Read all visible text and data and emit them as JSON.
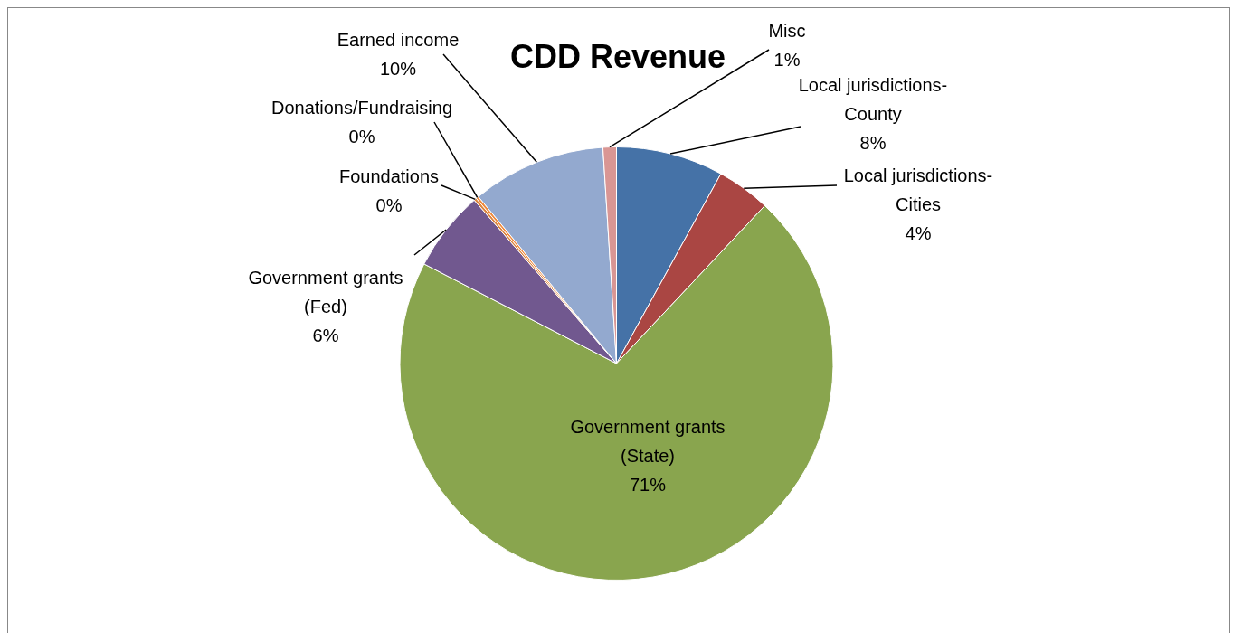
{
  "chart_data": {
    "type": "pie",
    "title": "CDD Revenue",
    "categories": [
      "Local jurisdictions-County",
      "Local jurisdictions-Cities",
      "Government grants (State)",
      "Government grants (Fed)",
      "Foundations",
      "Donations/Fundraising",
      "Earned income",
      "Misc"
    ],
    "values": [
      8,
      4,
      70.6,
      6,
      0.2,
      0.2,
      10,
      1
    ],
    "colors": [
      "#4572a7",
      "#aa4643",
      "#89a54e",
      "#71588f",
      "#db843d",
      "#f08a3c",
      "#93a9cf",
      "#d99694"
    ],
    "value_labels": [
      "8%",
      "4%",
      "71%",
      "6%",
      "0%",
      "0%",
      "10%",
      "1%"
    ],
    "legend": false
  }
}
